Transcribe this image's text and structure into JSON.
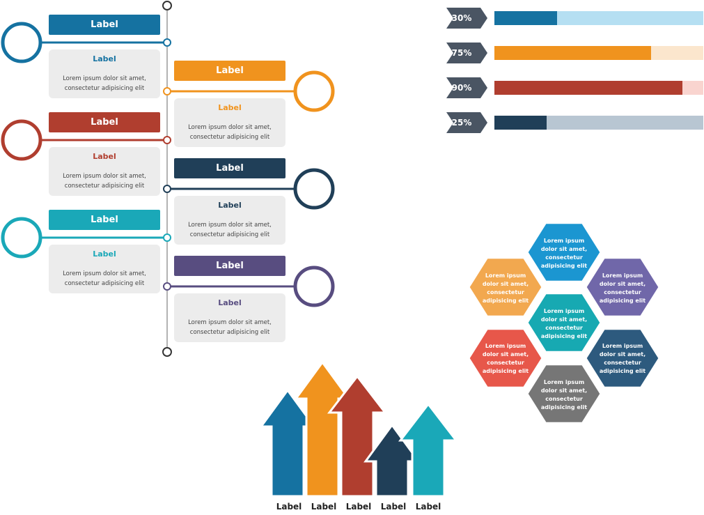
{
  "colors": {
    "blue": "#1572a1",
    "orange": "#f0931e",
    "red": "#b03e2f",
    "navy": "#203f58",
    "teal": "#1aa8b8",
    "purple": "#584d80",
    "line": "#b3b3b3",
    "chevron": "#4a5563"
  },
  "timeline": {
    "items": [
      {
        "header": "Label",
        "title": "Label",
        "body_line1": "Lorem ipsum dolor sit amet,",
        "body_line2": "consectetur adipisicing elit",
        "color": "#1572a1",
        "side": "left"
      },
      {
        "header": "Label",
        "title": "Label",
        "body_line1": "Lorem ipsum dolor sit amet,",
        "body_line2": "consectetur adipisicing elit",
        "color": "#f0931e",
        "side": "right"
      },
      {
        "header": "Label",
        "title": "Label",
        "body_line1": "Lorem ipsum dolor sit amet,",
        "body_line2": "consectetur adipisicing elit",
        "color": "#b03e2f",
        "side": "left"
      },
      {
        "header": "Label",
        "title": "Label",
        "body_line1": "Lorem ipsum dolor sit amet,",
        "body_line2": "consectetur adipisicing elit",
        "color": "#203f58",
        "side": "right"
      },
      {
        "header": "Label",
        "title": "Label",
        "body_line1": "Lorem ipsum dolor sit amet,",
        "body_line2": "consectetur adipisicing elit",
        "color": "#1aa8b8",
        "side": "left"
      },
      {
        "header": "Label",
        "title": "Label",
        "body_line1": "Lorem ipsum dolor sit amet,",
        "body_line2": "consectetur adipisicing elit",
        "color": "#584d80",
        "side": "right"
      }
    ]
  },
  "progress": {
    "items": [
      {
        "label": "30%",
        "value": 0.3,
        "color": "#1572a1",
        "track": "#b5dff2"
      },
      {
        "label": "75%",
        "value": 0.75,
        "color": "#f0931e",
        "track": "#fbe6cd"
      },
      {
        "label": "90%",
        "value": 0.9,
        "color": "#b03e2f",
        "track": "#f9d4cf"
      },
      {
        "label": "25%",
        "value": 0.25,
        "color": "#203f58",
        "track": "#b8c6d2"
      }
    ]
  },
  "honeycomb": {
    "cells": [
      {
        "line1": "Lorem ipsum",
        "line2": "dolor sit amet,",
        "line3": "consectetur",
        "line4": "adipisicing elit",
        "color": "#1b96d1"
      },
      {
        "line1": "Lorem ipsum",
        "line2": "dolor sit amet,",
        "line3": "consectetur",
        "line4": "adipisicing elit",
        "color": "#f2a84f"
      },
      {
        "line1": "Lorem ipsum",
        "line2": "dolor sit amet,",
        "line3": "consectetur",
        "line4": "adipisicing elit",
        "color": "#7067a9"
      },
      {
        "line1": "Lorem ipsum",
        "line2": "dolor sit amet,",
        "line3": "consectetur",
        "line4": "adipisicing elit",
        "color": "#17a9b2"
      },
      {
        "line1": "Lorem ipsum",
        "line2": "dolor sit amet,",
        "line3": "consectetur",
        "line4": "adipisicing elit",
        "color": "#e7574a"
      },
      {
        "line1": "Lorem ipsum",
        "line2": "dolor sit amet,",
        "line3": "consectetur",
        "line4": "adipisicing elit",
        "color": "#2d5a7e"
      },
      {
        "line1": "Lorem ipsum",
        "line2": "dolor sit amet,",
        "line3": "consectetur",
        "line4": "adipisicing elit",
        "color": "#767676"
      }
    ]
  },
  "arrows": {
    "items": [
      {
        "label": "Label",
        "color": "#1572a1"
      },
      {
        "label": "Label",
        "color": "#f0931e"
      },
      {
        "label": "Label",
        "color": "#b03e2f"
      },
      {
        "label": "Label",
        "color": "#203f58"
      },
      {
        "label": "Label",
        "color": "#1aa8b8"
      }
    ]
  }
}
